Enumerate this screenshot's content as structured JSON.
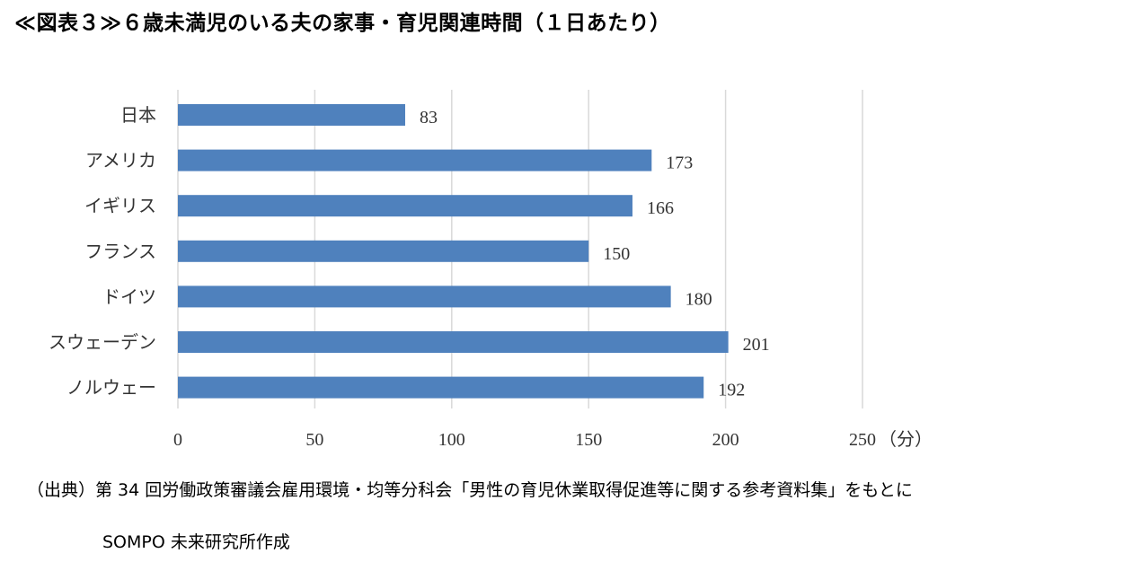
{
  "title": "≪図表３≫６歳未満児のいる夫の家事・育児関連時間（１日あたり）",
  "chart_data": {
    "type": "bar",
    "orientation": "horizontal",
    "categories": [
      "日本",
      "アメリカ",
      "イギリス",
      "フランス",
      "ドイツ",
      "スウェーデン",
      "ノルウェー"
    ],
    "values": [
      83,
      173,
      166,
      150,
      180,
      201,
      192
    ],
    "xlim": [
      0,
      250
    ],
    "x_ticks": [
      0,
      50,
      100,
      150,
      200,
      250
    ],
    "x_unit": "（分）",
    "grid": "vertical",
    "bar_color": "#4f81bd",
    "grid_color": "#d9d9d9"
  },
  "source": {
    "prefix": "（出典）",
    "line1": "第 34 回労働政策審議会雇用環境・均等分科会「男性の育児休業取得促進等に関する参考資料集」をもとに",
    "line2": "SOMPO 未来研究所作成"
  }
}
